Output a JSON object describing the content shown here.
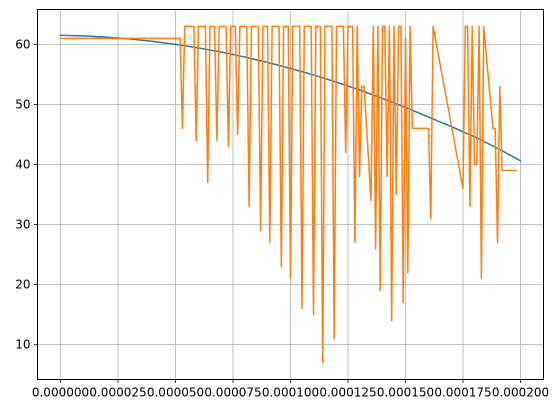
{
  "chart_data": {
    "type": "line",
    "title": "",
    "xlabel": "",
    "ylabel": "",
    "xlim": [
      -1e-05,
      0.00021
    ],
    "ylim": [
      4.2,
      65.8
    ],
    "grid": true,
    "x_ticks": [
      {
        "value": 0.0,
        "label": "0.000000"
      },
      {
        "value": 2.5e-05,
        "label": "0.000025"
      },
      {
        "value": 5e-05,
        "label": "0.000050"
      },
      {
        "value": 7.5e-05,
        "label": "0.000075"
      },
      {
        "value": 0.0001,
        "label": "0.000100"
      },
      {
        "value": 0.000125,
        "label": "0.000125"
      },
      {
        "value": 0.00015,
        "label": "0.000150"
      },
      {
        "value": 0.000175,
        "label": "0.000175"
      },
      {
        "value": 0.0002,
        "label": "0.000200"
      }
    ],
    "y_ticks": [
      {
        "value": 10,
        "label": "10"
      },
      {
        "value": 20,
        "label": "20"
      },
      {
        "value": 30,
        "label": "30"
      },
      {
        "value": 40,
        "label": "40"
      },
      {
        "value": 50,
        "label": "50"
      },
      {
        "value": 60,
        "label": "60"
      }
    ],
    "series": [
      {
        "color": "#1f77b4",
        "x": [
          0,
          1e-05,
          2e-05,
          3e-05,
          4e-05,
          5e-05,
          6e-05,
          7e-05,
          8e-05,
          9e-05,
          0.0001,
          0.00011,
          0.00012,
          0.00013,
          0.00014,
          0.00015,
          0.00016,
          0.00017,
          0.00018,
          0.00019,
          0.0002
        ],
        "y": [
          61.5,
          61.4,
          61.2,
          60.9,
          60.5,
          60.0,
          59.4,
          58.7,
          57.9,
          57.0,
          56.0,
          54.9,
          53.7,
          52.4,
          51.0,
          49.5,
          47.9,
          46.3,
          44.6,
          42.7,
          40.6
        ]
      },
      {
        "color": "#ff7f0e",
        "x": [
          0,
          5.2e-05,
          5.3e-05,
          5.4e-05,
          5.8e-05,
          5.9e-05,
          6e-05,
          6.3e-05,
          6.4e-05,
          6.5e-05,
          6.7e-05,
          6.8e-05,
          6.9e-05,
          7.2e-05,
          7.3e-05,
          7.4e-05,
          7.6e-05,
          7.7e-05,
          7.8e-05,
          8.1e-05,
          8.2e-05,
          8.3e-05,
          8.6e-05,
          8.7e-05,
          8.8e-05,
          9e-05,
          9.1e-05,
          9.2e-05,
          9.5e-05,
          9.6e-05,
          9.7e-05,
          9.9e-05,
          0.0001,
          0.000101,
          0.000104,
          0.000105,
          0.000106,
          0.000109,
          0.00011,
          0.000111,
          0.000113,
          0.000114,
          0.000115,
          0.000118,
          0.000119,
          0.00012,
          0.000123,
          0.000124,
          0.000125,
          0.000127,
          0.000128,
          0.000129,
          0.00013,
          0.000131,
          0.000132,
          0.000135,
          0.000136,
          0.000137,
          0.000138,
          0.000139,
          0.00014,
          0.000141,
          0.000142,
          0.000143,
          0.000144,
          0.000145,
          0.000146,
          0.000147,
          0.000148,
          0.000149,
          0.00015,
          0.000151,
          0.000152,
          0.000153,
          0.000154,
          0.000155,
          0.000156,
          0.000157,
          0.000158,
          0.000159,
          0.00016,
          0.000161,
          0.000162,
          0.000175,
          0.000176,
          0.000177,
          0.000178,
          0.000179,
          0.00018,
          0.000181,
          0.000182,
          0.000183,
          0.000184,
          0.000188,
          0.000189,
          0.00019,
          0.000191,
          0.000192,
          0.000193,
          0.000194,
          0.000195,
          0.000196,
          0.000197,
          0.000198
        ],
        "y": [
          61,
          61,
          46,
          63,
          63,
          44,
          63,
          63,
          37,
          63,
          63,
          44,
          63,
          63,
          43,
          63,
          63,
          45,
          63,
          63,
          33,
          63,
          63,
          29,
          63,
          63,
          27,
          63,
          63,
          23,
          63,
          63,
          21,
          63,
          63,
          16,
          63,
          63,
          15,
          63,
          63,
          7,
          63,
          63,
          11,
          63,
          63,
          42,
          63,
          63,
          27,
          63,
          38,
          53,
          53,
          34,
          63,
          26,
          63,
          19,
          63,
          63,
          38,
          63,
          14,
          63,
          35,
          63,
          63,
          17,
          61,
          22,
          63,
          46,
          46,
          46,
          46,
          46,
          46,
          46,
          46,
          31,
          63,
          36,
          63,
          63,
          33,
          63,
          40,
          40,
          63,
          21,
          63,
          46,
          46,
          27,
          53,
          39,
          39,
          39,
          39,
          39,
          39,
          39
        ]
      }
    ]
  }
}
